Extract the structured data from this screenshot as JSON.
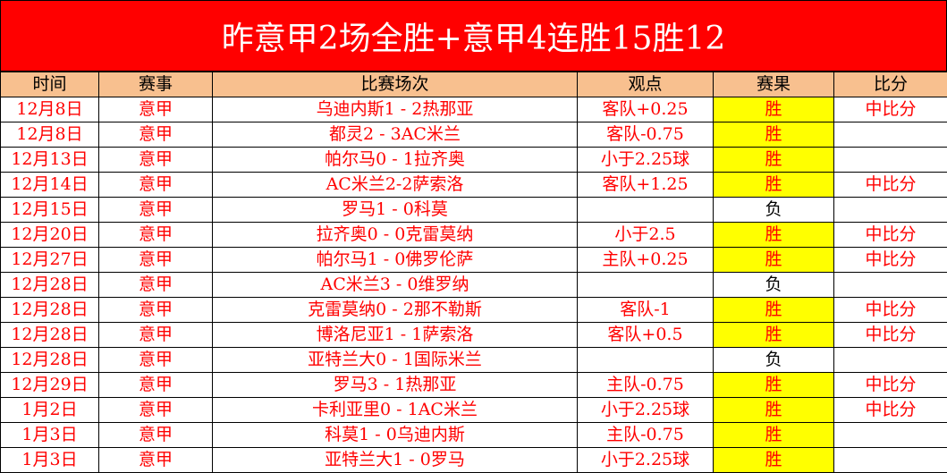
{
  "title": "昨意甲2场全胜+意甲4连胜15胜12",
  "headers": [
    "时间",
    "赛事",
    "比赛场次",
    "观点",
    "赛果",
    "比分"
  ],
  "colors": {
    "title_bg": "#ff0000",
    "header_bg": "#f8c08f",
    "win_bg": "#ffff00",
    "text": "#ff0000"
  },
  "rows": [
    {
      "date": "12月8日",
      "league": "意甲",
      "match": "乌迪内斯1 - 2热那亚",
      "pick": "客队+0.25",
      "result": "胜",
      "score": "中比分"
    },
    {
      "date": "12月8日",
      "league": "意甲",
      "match": "都灵2 - 3AC米兰",
      "pick": "客队-0.75",
      "result": "胜",
      "score": ""
    },
    {
      "date": "12月13日",
      "league": "意甲",
      "match": "帕尔马0 - 1拉齐奥",
      "pick": "小于2.25球",
      "result": "胜",
      "score": ""
    },
    {
      "date": "12月14日",
      "league": "意甲",
      "match": "AC米兰2-2萨索洛",
      "pick": "客队+1.25",
      "result": "胜",
      "score": "中比分"
    },
    {
      "date": "12月15日",
      "league": "意甲",
      "match": "罗马1 - 0科莫",
      "pick": "",
      "result": "负",
      "score": ""
    },
    {
      "date": "12月20日",
      "league": "意甲",
      "match": "拉齐奥0 - 0克雷莫纳",
      "pick": "小于2.5",
      "result": "胜",
      "score": "中比分"
    },
    {
      "date": "12月27日",
      "league": "意甲",
      "match": "帕尔马1 - 0佛罗伦萨",
      "pick": "主队+0.25",
      "result": "胜",
      "score": "中比分"
    },
    {
      "date": "12月28日",
      "league": "意甲",
      "match": "AC米兰3 - 0维罗纳",
      "pick": "",
      "result": "负",
      "score": ""
    },
    {
      "date": "12月28日",
      "league": "意甲",
      "match": "克雷莫纳0 - 2那不勒斯",
      "pick": "客队-1",
      "result": "胜",
      "score": "中比分"
    },
    {
      "date": "12月28日",
      "league": "意甲",
      "match": "博洛尼亚1 - 1萨索洛",
      "pick": "客队+0.5",
      "result": "胜",
      "score": "中比分"
    },
    {
      "date": "12月28日",
      "league": "意甲",
      "match": "亚特兰大0 - 1国际米兰",
      "pick": "",
      "result": "负",
      "score": ""
    },
    {
      "date": "12月29日",
      "league": "意甲",
      "match": "罗马3 - 1热那亚",
      "pick": "主队-0.75",
      "result": "胜",
      "score": "中比分"
    },
    {
      "date": "1月2日",
      "league": "意甲",
      "match": "卡利亚里0 - 1AC米兰",
      "pick": "小于2.25球",
      "result": "胜",
      "score": "中比分"
    },
    {
      "date": "1月3日",
      "league": "意甲",
      "match": "科莫1 - 0乌迪内斯",
      "pick": "主队-0.75",
      "result": "胜",
      "score": ""
    },
    {
      "date": "1月3日",
      "league": "意甲",
      "match": "亚特兰大1 - 0罗马",
      "pick": "小于2.25球",
      "result": "胜",
      "score": ""
    }
  ]
}
